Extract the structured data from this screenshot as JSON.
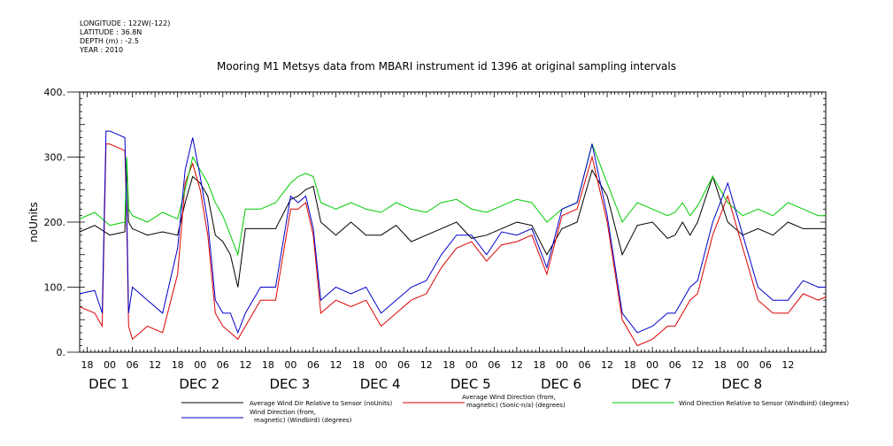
{
  "meta": {
    "longitude": "LONGITUDE : 122W(-122)",
    "latitude": "LATITUDE : 36.8N",
    "depth": "DEPTH (m) : -2.5",
    "year": "YEAR : 2010"
  },
  "chart_data": {
    "type": "line",
    "title": "Mooring M1 Metsys data from MBARI instrument id 1396 at original sampling intervals",
    "ylabel": "noUnits",
    "xlabel": "",
    "ylim": [
      0,
      400
    ],
    "xlim_hours": [
      -8,
      190
    ],
    "y_ticks": [
      "0.",
      "100.",
      "200.",
      "300.",
      "400."
    ],
    "x_hour_labels": [
      "18",
      "00",
      "06",
      "12",
      "18",
      "00",
      "06",
      "12",
      "18",
      "00",
      "06",
      "12",
      "18",
      "00",
      "06",
      "12",
      "18",
      "00",
      "06",
      "12",
      "18",
      "00",
      "06",
      "12",
      "18",
      "00",
      "06",
      "12",
      "18",
      "00",
      "06",
      "12"
    ],
    "day_labels": [
      "DEC  1",
      "DEC  2",
      "DEC  3",
      "DEC  4",
      "DEC  5",
      "DEC  6",
      "DEC  7",
      "DEC  8"
    ],
    "series": [
      {
        "name": "Average Wind Dir Relative to Sensor (noUnits)",
        "color": "#000000",
        "x": [
          -8,
          -4,
          0,
          4,
          4.5,
          5,
          6,
          10,
          14,
          18,
          20,
          22,
          24,
          26,
          28,
          30,
          32,
          34,
          36,
          40,
          44,
          48,
          50,
          52,
          54,
          56,
          60,
          64,
          68,
          72,
          76,
          80,
          84,
          88,
          92,
          96,
          100,
          104,
          108,
          112,
          116,
          120,
          124,
          128,
          132,
          136,
          140,
          144,
          148,
          150,
          152,
          154,
          156,
          160,
          164,
          168,
          172,
          176,
          180,
          184,
          188,
          190
        ],
        "y": [
          185,
          195,
          180,
          185,
          290,
          200,
          190,
          180,
          185,
          180,
          230,
          270,
          260,
          240,
          180,
          170,
          150,
          100,
          190,
          190,
          190,
          235,
          240,
          250,
          255,
          200,
          180,
          200,
          180,
          180,
          195,
          170,
          180,
          190,
          200,
          175,
          180,
          190,
          200,
          195,
          150,
          190,
          200,
          280,
          240,
          150,
          195,
          200,
          175,
          180,
          200,
          180,
          200,
          270,
          200,
          180,
          190,
          180,
          200,
          190,
          190,
          190
        ]
      },
      {
        "name": "Average Wind Direction (from, magnetic) (Sonic-n/a) (degrees)",
        "color": "#dd0000",
        "x": [
          -8,
          -4,
          -2,
          -1,
          0,
          4,
          4.5,
          5,
          6,
          10,
          14,
          18,
          20,
          22,
          24,
          26,
          28,
          30,
          32,
          34,
          36,
          40,
          44,
          48,
          50,
          52,
          54,
          56,
          60,
          64,
          68,
          72,
          76,
          80,
          84,
          88,
          92,
          96,
          100,
          104,
          108,
          112,
          116,
          120,
          124,
          128,
          132,
          136,
          140,
          144,
          148,
          150,
          152,
          154,
          156,
          160,
          164,
          168,
          172,
          176,
          180,
          184,
          188,
          190
        ],
        "y": [
          70,
          60,
          40,
          320,
          320,
          310,
          200,
          40,
          20,
          40,
          30,
          120,
          260,
          290,
          250,
          180,
          60,
          40,
          30,
          20,
          40,
          80,
          80,
          220,
          220,
          230,
          180,
          60,
          80,
          70,
          80,
          40,
          60,
          80,
          90,
          130,
          160,
          170,
          140,
          165,
          170,
          180,
          120,
          210,
          220,
          300,
          200,
          50,
          10,
          20,
          40,
          40,
          60,
          80,
          90,
          180,
          240,
          160,
          80,
          60,
          60,
          90,
          80,
          85
        ]
      },
      {
        "name": "Wind Direction Relative to Sensor (Windbird) (degrees)",
        "color": "#00cc00",
        "x": [
          -8,
          -4,
          0,
          4,
          4.5,
          5,
          6,
          10,
          14,
          18,
          20,
          22,
          24,
          26,
          28,
          30,
          32,
          34,
          36,
          40,
          44,
          48,
          50,
          52,
          54,
          56,
          60,
          64,
          68,
          72,
          76,
          80,
          84,
          88,
          92,
          96,
          100,
          104,
          108,
          112,
          116,
          120,
          124,
          128,
          132,
          136,
          140,
          144,
          148,
          150,
          152,
          154,
          156,
          160,
          164,
          168,
          172,
          176,
          180,
          184,
          188,
          190
        ],
        "y": [
          205,
          215,
          195,
          200,
          300,
          220,
          210,
          200,
          215,
          205,
          250,
          300,
          280,
          260,
          230,
          210,
          180,
          150,
          220,
          220,
          230,
          260,
          270,
          275,
          270,
          230,
          220,
          230,
          220,
          215,
          230,
          220,
          215,
          230,
          235,
          220,
          215,
          225,
          235,
          230,
          200,
          220,
          230,
          320,
          260,
          200,
          230,
          220,
          210,
          215,
          230,
          210,
          225,
          270,
          230,
          210,
          220,
          210,
          230,
          220,
          210,
          210
        ]
      },
      {
        "name": "Wind Direction (from, magnetic) (Windbird) (degrees)",
        "color": "#0000cc",
        "x": [
          -8,
          -4,
          -2,
          -1,
          0,
          4,
          4.5,
          5,
          6,
          10,
          14,
          18,
          20,
          22,
          24,
          26,
          28,
          30,
          32,
          34,
          36,
          40,
          44,
          48,
          50,
          52,
          54,
          56,
          60,
          64,
          68,
          72,
          76,
          80,
          84,
          88,
          92,
          96,
          100,
          104,
          108,
          112,
          116,
          120,
          124,
          128,
          132,
          136,
          140,
          144,
          148,
          150,
          152,
          154,
          156,
          160,
          164,
          168,
          172,
          176,
          180,
          184,
          188,
          190
        ],
        "y": [
          90,
          95,
          60,
          340,
          340,
          330,
          220,
          60,
          100,
          80,
          60,
          160,
          280,
          330,
          270,
          200,
          80,
          60,
          60,
          30,
          60,
          100,
          100,
          240,
          230,
          240,
          190,
          80,
          100,
          90,
          100,
          60,
          80,
          100,
          110,
          150,
          180,
          180,
          150,
          185,
          180,
          190,
          130,
          220,
          230,
          320,
          210,
          60,
          30,
          40,
          60,
          60,
          80,
          100,
          110,
          200,
          260,
          180,
          100,
          80,
          80,
          110,
          100,
          100
        ]
      }
    ],
    "legend": [
      "Average Wind Dir Relative to Sensor (noUnits)",
      "Average Wind Direction (from,",
      "magnetic) (Sonic-n/a) (degrees)",
      "Wind Direction Relative to Sensor (Windbird) (degrees)",
      "Wind Direction (from,",
      "magnetic) (Windbird) (degrees)"
    ],
    "legend_colors": [
      "#000000",
      "#dd0000",
      "#00cc00",
      "#0000cc"
    ],
    "legend_placement": "bottom",
    "grid": false
  }
}
